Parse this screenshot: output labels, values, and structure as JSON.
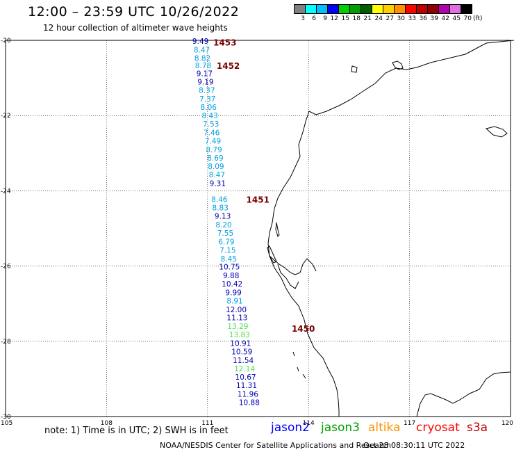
{
  "header": {
    "title": "12:00 – 23:59 UTC 10/26/2022",
    "subtitle": "12 hour collection of altimeter wave heights"
  },
  "legend": {
    "labels": [
      "3",
      "6",
      "9",
      "12",
      "15",
      "18",
      "21",
      "24",
      "27",
      "30",
      "33",
      "36",
      "39",
      "42",
      "45",
      "70"
    ],
    "units": "(ft)",
    "colors": [
      "#808080",
      "#00ffff",
      "#00bfff",
      "#0000ff",
      "#00d000",
      "#00a000",
      "#006000",
      "#ffff00",
      "#ffd000",
      "#ff9000",
      "#ff0000",
      "#c00000",
      "#900000",
      "#b000b0",
      "#e070e0",
      "#000000"
    ]
  },
  "axes": {
    "y_labels": [
      "-20",
      "-22",
      "-24",
      "-26",
      "-28",
      "-30"
    ],
    "x_labels": [
      "105",
      "108",
      "111",
      "114",
      "117",
      "120"
    ]
  },
  "passes": [
    {
      "label": "1453",
      "lat": -20.05,
      "lon": 111.17
    },
    {
      "label": "1452",
      "lat": -20.67,
      "lon": 111.27
    },
    {
      "label": "1451",
      "lat": -24.22,
      "lon": 112.15
    },
    {
      "label": "1450",
      "lat": -27.65,
      "lon": 113.5
    }
  ],
  "measurements": [
    {
      "v": "9.49",
      "lat": -20.02,
      "lon": 110.79,
      "c": "#0000b4"
    },
    {
      "v": "8.47",
      "lat": -20.25,
      "lon": 110.83,
      "c": "#00a0e0"
    },
    {
      "v": "8.82",
      "lat": -20.47,
      "lon": 110.85,
      "c": "#00a0e0"
    },
    {
      "v": "8.78",
      "lat": -20.67,
      "lon": 110.87,
      "c": "#00a0e0"
    },
    {
      "v": "9.17",
      "lat": -20.88,
      "lon": 110.91,
      "c": "#0000b4"
    },
    {
      "v": "9.19",
      "lat": -21.1,
      "lon": 110.94,
      "c": "#0000b4"
    },
    {
      "v": "8.37",
      "lat": -21.32,
      "lon": 110.98,
      "c": "#00a0e0"
    },
    {
      "v": "7.37",
      "lat": -21.55,
      "lon": 111.0,
      "c": "#00a0e0"
    },
    {
      "v": "8.06",
      "lat": -21.77,
      "lon": 111.03,
      "c": "#00a0e0"
    },
    {
      "v": "8.43",
      "lat": -22.0,
      "lon": 111.07,
      "c": "#00a0e0"
    },
    {
      "v": "7.53",
      "lat": -22.22,
      "lon": 111.1,
      "c": "#00a0e0"
    },
    {
      "v": "7.46",
      "lat": -22.45,
      "lon": 111.12,
      "c": "#00a0e0"
    },
    {
      "v": "7.49",
      "lat": -22.67,
      "lon": 111.16,
      "c": "#00a0e0"
    },
    {
      "v": "8.79",
      "lat": -22.9,
      "lon": 111.19,
      "c": "#00a0e0"
    },
    {
      "v": "8.69",
      "lat": -23.12,
      "lon": 111.23,
      "c": "#00a0e0"
    },
    {
      "v": "8.09",
      "lat": -23.35,
      "lon": 111.25,
      "c": "#00a0e0"
    },
    {
      "v": "8.47",
      "lat": -23.57,
      "lon": 111.28,
      "c": "#00a0e0"
    },
    {
      "v": "9.31",
      "lat": -23.8,
      "lon": 111.3,
      "c": "#0000b4"
    },
    {
      "v": "8.46",
      "lat": -24.22,
      "lon": 111.35,
      "c": "#00a0e0"
    },
    {
      "v": "8.83",
      "lat": -24.45,
      "lon": 111.38,
      "c": "#00a0e0"
    },
    {
      "v": "9.13",
      "lat": -24.67,
      "lon": 111.45,
      "c": "#0000b4"
    },
    {
      "v": "8.20",
      "lat": -24.9,
      "lon": 111.48,
      "c": "#00a0e0"
    },
    {
      "v": "7.55",
      "lat": -25.12,
      "lon": 111.53,
      "c": "#00a0e0"
    },
    {
      "v": "6.79",
      "lat": -25.35,
      "lon": 111.56,
      "c": "#00a0e0"
    },
    {
      "v": "7.15",
      "lat": -25.57,
      "lon": 111.6,
      "c": "#00a0e0"
    },
    {
      "v": "8.45",
      "lat": -25.8,
      "lon": 111.63,
      "c": "#00a0e0"
    },
    {
      "v": "10.75",
      "lat": -26.02,
      "lon": 111.65,
      "c": "#0000b4"
    },
    {
      "v": "9.88",
      "lat": -26.25,
      "lon": 111.7,
      "c": "#0000b4"
    },
    {
      "v": "10.42",
      "lat": -26.47,
      "lon": 111.73,
      "c": "#0000b4"
    },
    {
      "v": "9.99",
      "lat": -26.7,
      "lon": 111.77,
      "c": "#0000b4"
    },
    {
      "v": "8.91",
      "lat": -26.92,
      "lon": 111.81,
      "c": "#00a0e0"
    },
    {
      "v": "12.00",
      "lat": -27.15,
      "lon": 111.85,
      "c": "#0000b4"
    },
    {
      "v": "11.13",
      "lat": -27.37,
      "lon": 111.88,
      "c": "#0000b4"
    },
    {
      "v": "13.29",
      "lat": -27.6,
      "lon": 111.9,
      "c": "#50e050"
    },
    {
      "v": "13.83",
      "lat": -27.82,
      "lon": 111.95,
      "c": "#50e050"
    },
    {
      "v": "10.91",
      "lat": -28.05,
      "lon": 111.98,
      "c": "#0000b4"
    },
    {
      "v": "10.59",
      "lat": -28.27,
      "lon": 112.02,
      "c": "#0000b4"
    },
    {
      "v": "11.54",
      "lat": -28.5,
      "lon": 112.06,
      "c": "#0000b4"
    },
    {
      "v": "12.14",
      "lat": -28.72,
      "lon": 112.1,
      "c": "#50e050"
    },
    {
      "v": "10.67",
      "lat": -28.95,
      "lon": 112.13,
      "c": "#0000b4"
    },
    {
      "v": "11.31",
      "lat": -29.17,
      "lon": 112.16,
      "c": "#0000b4"
    },
    {
      "v": "11.96",
      "lat": -29.4,
      "lon": 112.2,
      "c": "#0000b4"
    },
    {
      "v": "10.88",
      "lat": -29.62,
      "lon": 112.24,
      "c": "#0000b4"
    }
  ],
  "footer": {
    "note": "note:  1) Time is in UTC;  2) SWH is in feet",
    "satellites": [
      {
        "name": "jason2",
        "color": "#0000ff"
      },
      {
        "name": "jason3",
        "color": "#00a000"
      },
      {
        "name": "altika",
        "color": "#ff9000"
      },
      {
        "name": "cryosat",
        "color": "#ff0000"
      },
      {
        "name": "s3a",
        "color": "#c00000"
      }
    ],
    "credit": "NOAA/NESDIS Center for Satellite Applications and Research",
    "generated": "Oct 28 08:30:11 UTC 2022"
  }
}
